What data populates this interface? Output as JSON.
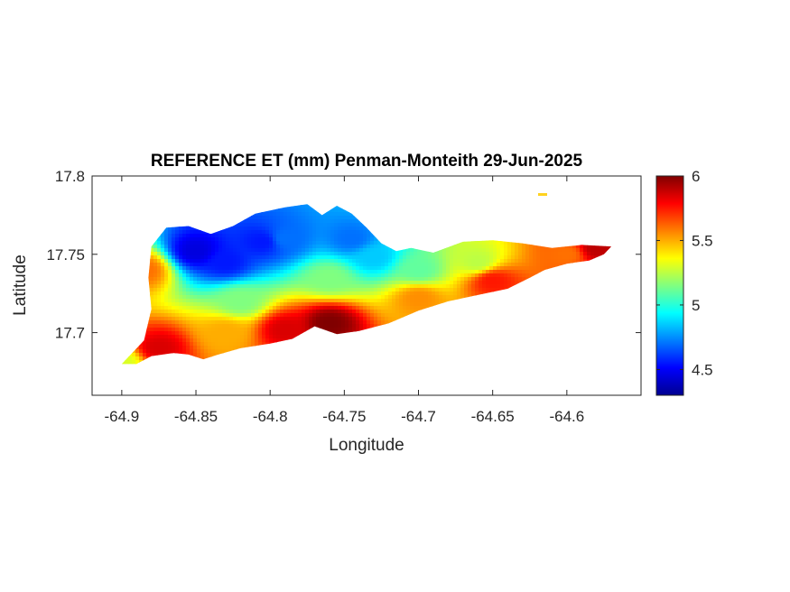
{
  "chart_data": {
    "type": "heatmap",
    "title": "REFERENCE ET (mm) Penman-Monteith 29-Jun-2025",
    "xlabel": "Longitude",
    "ylabel": "Latitude",
    "xlim": [
      -64.92,
      -64.55
    ],
    "ylim": [
      17.66,
      17.8
    ],
    "xticks": [
      -64.9,
      -64.85,
      -64.8,
      -64.75,
      -64.7,
      -64.65,
      -64.6
    ],
    "xtick_labels": [
      "-64.9",
      "-64.85",
      "-64.8",
      "-64.75",
      "-64.7",
      "-64.65",
      "-64.6"
    ],
    "yticks": [
      17.7,
      17.75,
      17.8
    ],
    "ytick_labels": [
      "17.7",
      "17.75",
      "17.8"
    ],
    "colorbar": {
      "colormap": "jet",
      "limits": [
        4.3,
        6.0
      ],
      "ticks": [
        4.5,
        5,
        5.5,
        6
      ],
      "tick_labels": [
        "4.5",
        "5",
        "5.5",
        "6"
      ]
    },
    "grid": false,
    "land_outline": [
      [
        -64.9,
        17.68
      ],
      [
        -64.895,
        17.685
      ],
      [
        -64.885,
        17.695
      ],
      [
        -64.88,
        17.715
      ],
      [
        -64.882,
        17.735
      ],
      [
        -64.88,
        17.755
      ],
      [
        -64.87,
        17.767
      ],
      [
        -64.855,
        17.768
      ],
      [
        -64.84,
        17.763
      ],
      [
        -64.825,
        17.768
      ],
      [
        -64.81,
        17.776
      ],
      [
        -64.79,
        17.78
      ],
      [
        -64.775,
        17.782
      ],
      [
        -64.765,
        17.775
      ],
      [
        -64.755,
        17.781
      ],
      [
        -64.745,
        17.776
      ],
      [
        -64.735,
        17.767
      ],
      [
        -64.725,
        17.757
      ],
      [
        -64.715,
        17.752
      ],
      [
        -64.705,
        17.754
      ],
      [
        -64.69,
        17.751
      ],
      [
        -64.67,
        17.758
      ],
      [
        -64.65,
        17.759
      ],
      [
        -64.63,
        17.757
      ],
      [
        -64.61,
        17.754
      ],
      [
        -64.59,
        17.756
      ],
      [
        -64.57,
        17.755
      ],
      [
        -64.575,
        17.75
      ],
      [
        -64.585,
        17.746
      ],
      [
        -64.6,
        17.744
      ],
      [
        -64.615,
        17.74
      ],
      [
        -64.625,
        17.735
      ],
      [
        -64.64,
        17.728
      ],
      [
        -64.66,
        17.724
      ],
      [
        -64.68,
        17.72
      ],
      [
        -64.7,
        17.714
      ],
      [
        -64.72,
        17.706
      ],
      [
        -64.74,
        17.701
      ],
      [
        -64.755,
        17.699
      ],
      [
        -64.77,
        17.704
      ],
      [
        -64.785,
        17.696
      ],
      [
        -64.8,
        17.693
      ],
      [
        -64.82,
        17.69
      ],
      [
        -64.835,
        17.686
      ],
      [
        -64.845,
        17.683
      ],
      [
        -64.855,
        17.686
      ],
      [
        -64.865,
        17.687
      ],
      [
        -64.88,
        17.685
      ],
      [
        -64.89,
        17.68
      ]
    ],
    "value_centers": [
      {
        "lon": -64.85,
        "lat": 17.752,
        "value": 4.45
      },
      {
        "lon": -64.83,
        "lat": 17.745,
        "value": 4.55
      },
      {
        "lon": -64.805,
        "lat": 17.758,
        "value": 4.55
      },
      {
        "lon": -64.79,
        "lat": 17.76,
        "value": 4.7
      },
      {
        "lon": -64.745,
        "lat": 17.76,
        "value": 4.7
      },
      {
        "lon": -64.73,
        "lat": 17.748,
        "value": 4.85
      },
      {
        "lon": -64.7,
        "lat": 17.74,
        "value": 5.1
      },
      {
        "lon": -64.66,
        "lat": 17.745,
        "value": 5.25
      },
      {
        "lon": -64.6,
        "lat": 17.75,
        "value": 5.6
      },
      {
        "lon": -64.58,
        "lat": 17.754,
        "value": 5.9
      },
      {
        "lon": -64.65,
        "lat": 17.733,
        "value": 5.75
      },
      {
        "lon": -64.7,
        "lat": 17.722,
        "value": 5.55
      },
      {
        "lon": -64.76,
        "lat": 17.706,
        "value": 6.0
      },
      {
        "lon": -64.79,
        "lat": 17.702,
        "value": 5.85
      },
      {
        "lon": -64.83,
        "lat": 17.7,
        "value": 5.5
      },
      {
        "lon": -64.875,
        "lat": 17.69,
        "value": 5.85
      },
      {
        "lon": -64.885,
        "lat": 17.74,
        "value": 5.6
      },
      {
        "lon": -64.82,
        "lat": 17.72,
        "value": 5.15
      },
      {
        "lon": -64.76,
        "lat": 17.735,
        "value": 5.15
      },
      {
        "lon": -64.9,
        "lat": 17.681,
        "value": 5.3
      }
    ]
  }
}
